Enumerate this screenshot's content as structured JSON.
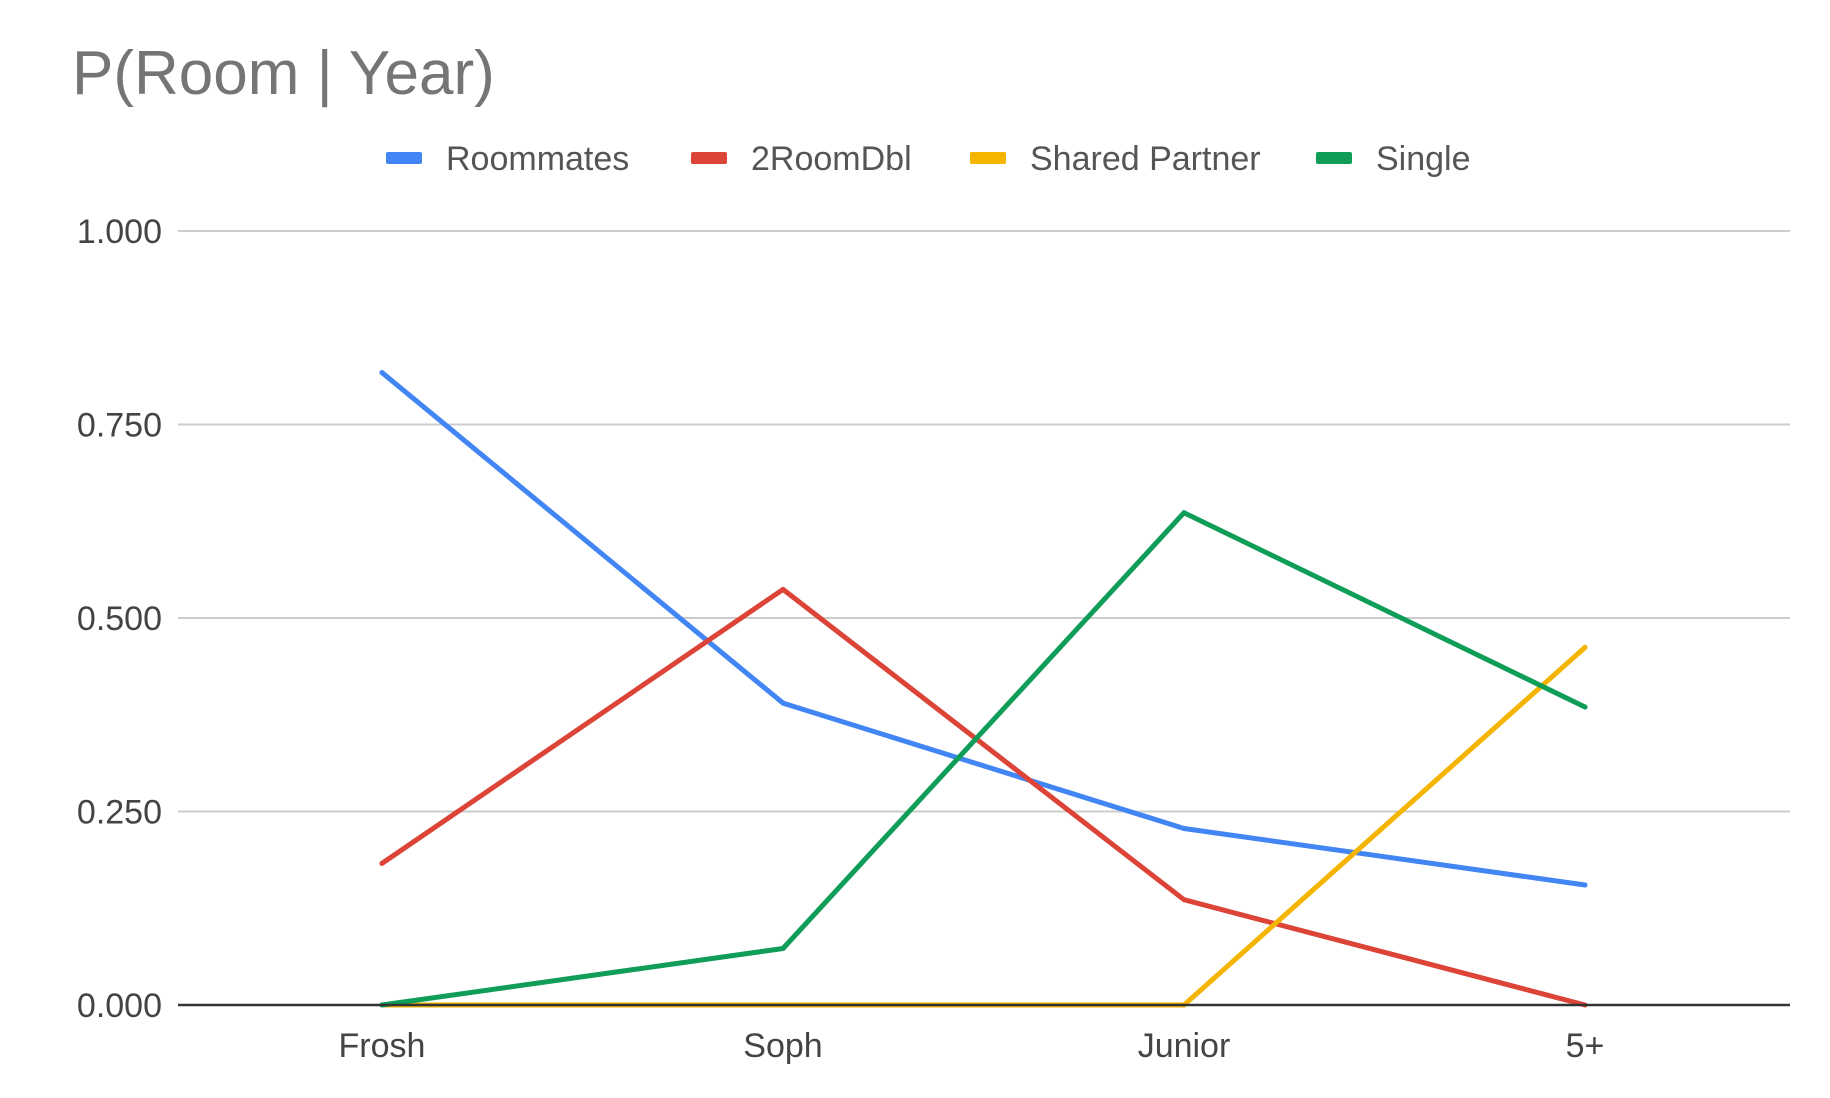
{
  "chart_data": {
    "type": "line",
    "title": "P(Room | Year)",
    "categories": [
      "Frosh",
      "Soph",
      "Junior",
      "5+"
    ],
    "y_tick_labels": [
      "0.000",
      "0.250",
      "0.500",
      "0.750",
      "1.000"
    ],
    "y_ticks": [
      0,
      0.25,
      0.5,
      0.75,
      1.0
    ],
    "ylim": [
      0,
      1.0
    ],
    "grid": true,
    "legend_position": "top-center",
    "series": [
      {
        "name": "Roommates",
        "color": "#4285f4",
        "values": [
          0.817,
          0.39,
          0.228,
          0.155
        ]
      },
      {
        "name": "2RoomDbl",
        "color": "#db4437",
        "values": [
          0.183,
          0.537,
          0.136,
          0.0
        ]
      },
      {
        "name": "Shared Partner",
        "color": "#f4b400",
        "values": [
          0.0,
          0.0,
          0.0,
          0.462
        ]
      },
      {
        "name": "Single",
        "color": "#0f9d58",
        "values": [
          0.0,
          0.073,
          0.636,
          0.385
        ]
      }
    ]
  }
}
